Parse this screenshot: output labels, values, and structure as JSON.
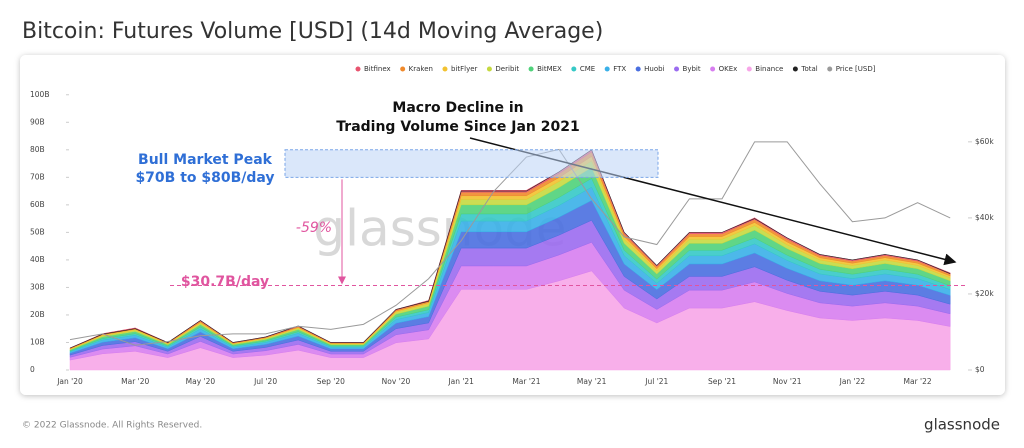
{
  "chart_data": {
    "type": "stacked-area",
    "title": "Bitcoin: Futures Volume [USD] (14d Moving Average)",
    "categories": [
      "Jan '20",
      null,
      "Mar '20",
      null,
      "May '20",
      null,
      "Jul '20",
      null,
      "Sep '20",
      null,
      "Nov '20",
      null,
      "Jan '21",
      null,
      "Mar '21",
      null,
      "May '21",
      null,
      "Jul '21",
      null,
      "Sep '21",
      null,
      "Nov '21",
      null,
      "Jan '22",
      null,
      "Mar '22",
      null
    ],
    "ylim": [
      0,
      105
    ],
    "yticks": [
      {
        "value": 0,
        "label": "0"
      },
      {
        "value": 10,
        "label": "10B"
      },
      {
        "value": 20,
        "label": "20B"
      },
      {
        "value": 30,
        "label": "30B"
      },
      {
        "value": 40,
        "label": "40B"
      },
      {
        "value": 50,
        "label": "50B"
      },
      {
        "value": 60,
        "label": "60B"
      },
      {
        "value": 70,
        "label": "70B"
      },
      {
        "value": 80,
        "label": "80B"
      },
      {
        "value": 90,
        "label": "90B"
      },
      {
        "value": 100,
        "label": "100B"
      }
    ],
    "y2lim": [
      0,
      76000
    ],
    "y2ticks": [
      {
        "value": 0,
        "label": "$0"
      },
      {
        "value": 20000,
        "label": "$20k"
      },
      {
        "value": 40000,
        "label": "$40k"
      },
      {
        "value": 60000,
        "label": "$60k"
      }
    ],
    "series": [
      {
        "name": "Bitfinex",
        "color": "#e8546f",
        "values": [
          0.1,
          0.1,
          0.2,
          0.1,
          0.2,
          0.1,
          0.1,
          0.2,
          0.1,
          0.1,
          0.2,
          0.3,
          0.7,
          0.7,
          0.7,
          0.7,
          0.8,
          0.5,
          0.4,
          0.5,
          0.5,
          0.6,
          0.5,
          0.4,
          0.4,
          0.4,
          0.4,
          0.4
        ]
      },
      {
        "name": "Kraken",
        "color": "#f08a2c",
        "values": [
          0.2,
          0.3,
          0.3,
          0.2,
          0.4,
          0.2,
          0.2,
          0.3,
          0.2,
          0.2,
          0.4,
          0.5,
          1.3,
          1.3,
          1.3,
          1.4,
          1.6,
          1.0,
          0.8,
          1.0,
          1.0,
          1.1,
          1.0,
          0.8,
          0.8,
          0.8,
          0.8,
          0.7
        ]
      },
      {
        "name": "bitFlyer",
        "color": "#f2c230",
        "values": [
          0.2,
          0.3,
          0.3,
          0.2,
          0.4,
          0.2,
          0.2,
          0.3,
          0.2,
          0.2,
          0.4,
          0.5,
          1.3,
          1.3,
          1.3,
          1.4,
          1.6,
          1.0,
          0.8,
          1.0,
          1.0,
          1.1,
          1.0,
          0.8,
          0.8,
          0.8,
          0.8,
          0.7
        ]
      },
      {
        "name": "Deribit",
        "color": "#c5d940",
        "values": [
          0.2,
          0.4,
          0.5,
          0.3,
          0.5,
          0.3,
          0.4,
          0.5,
          0.3,
          0.3,
          0.7,
          0.8,
          2.0,
          2.0,
          2.0,
          2.2,
          2.4,
          1.5,
          1.1,
          1.5,
          1.5,
          1.7,
          1.4,
          1.3,
          1.2,
          1.3,
          1.2,
          1.1
        ]
      },
      {
        "name": "BitMEX",
        "color": "#4fd27a",
        "values": [
          0.4,
          0.7,
          0.8,
          0.5,
          0.9,
          0.5,
          0.6,
          0.8,
          0.5,
          0.5,
          1.1,
          1.3,
          3.3,
          3.3,
          3.3,
          3.6,
          4.0,
          2.5,
          1.9,
          2.5,
          2.5,
          2.8,
          2.4,
          2.1,
          2.0,
          2.1,
          2.0,
          1.8
        ]
      },
      {
        "name": "CME",
        "color": "#36c9c6",
        "values": [
          0.3,
          0.5,
          0.6,
          0.4,
          0.7,
          0.4,
          0.5,
          0.6,
          0.4,
          0.4,
          0.9,
          1.0,
          2.6,
          2.6,
          2.6,
          2.9,
          3.2,
          2.0,
          1.5,
          2.0,
          2.0,
          2.2,
          1.9,
          1.7,
          1.6,
          1.7,
          1.6,
          1.4
        ]
      },
      {
        "name": "FTX",
        "color": "#3ab0e8",
        "values": [
          0.5,
          0.8,
          0.9,
          0.6,
          1.1,
          0.6,
          0.7,
          1.0,
          0.6,
          0.6,
          1.3,
          1.5,
          3.9,
          3.9,
          3.9,
          4.3,
          4.8,
          3.0,
          2.3,
          3.0,
          3.0,
          3.3,
          2.9,
          2.5,
          2.4,
          2.5,
          2.4,
          2.1
        ]
      },
      {
        "name": "Huobi",
        "color": "#4a6fe0",
        "values": [
          0.7,
          1.2,
          1.4,
          0.9,
          1.6,
          0.9,
          1.1,
          1.4,
          0.9,
          0.9,
          2.0,
          2.3,
          5.9,
          5.9,
          5.9,
          6.5,
          7.2,
          4.5,
          3.4,
          4.5,
          4.5,
          5.0,
          4.3,
          3.8,
          3.6,
          3.8,
          3.6,
          3.2
        ]
      },
      {
        "name": "Bybit",
        "color": "#9b6cf0",
        "values": [
          0.8,
          1.3,
          1.5,
          1.0,
          1.8,
          1.0,
          1.2,
          1.6,
          1.0,
          1.0,
          2.2,
          2.5,
          6.5,
          6.5,
          6.5,
          7.2,
          8.0,
          5.0,
          3.8,
          5.0,
          5.0,
          5.5,
          4.8,
          4.2,
          4.0,
          4.2,
          4.0,
          3.5
        ]
      },
      {
        "name": "OKEx",
        "color": "#d77ef0",
        "values": [
          1.0,
          1.7,
          2.0,
          1.3,
          2.3,
          1.3,
          1.6,
          2.1,
          1.3,
          1.3,
          2.9,
          3.3,
          8.5,
          8.5,
          8.5,
          9.4,
          10.4,
          6.5,
          4.9,
          6.5,
          6.5,
          7.2,
          6.2,
          5.5,
          5.2,
          5.5,
          5.2,
          4.6
        ]
      },
      {
        "name": "Binance",
        "color": "#f7a6e8",
        "values": [
          3.6,
          5.9,
          6.8,
          4.5,
          8.1,
          4.5,
          5.4,
          7.2,
          4.5,
          4.5,
          9.9,
          11.3,
          29.3,
          29.3,
          29.3,
          32.4,
          36,
          22.5,
          17.1,
          22.5,
          22.5,
          24.8,
          21.6,
          18.9,
          18,
          18.9,
          18,
          15.8
        ]
      },
      {
        "name": "Total",
        "color": "#222222",
        "style": "line",
        "values": [
          8,
          13,
          15,
          10,
          18,
          10,
          12,
          16,
          10,
          10,
          22,
          25,
          65,
          65,
          65,
          72,
          80,
          50,
          38,
          50,
          50,
          55,
          48,
          42,
          40,
          42,
          40,
          35
        ]
      },
      {
        "name": "Price [USD]",
        "color": "#9a9a9a",
        "style": "line",
        "axis": "y2",
        "values": [
          8000,
          9500,
          6500,
          7500,
          9000,
          9500,
          9500,
          11500,
          10700,
          12000,
          17000,
          24000,
          34000,
          47000,
          56000,
          58000,
          45000,
          35000,
          33000,
          45000,
          45000,
          60000,
          60000,
          49000,
          39000,
          40000,
          44000,
          40000
        ]
      }
    ],
    "annotations": {
      "trend": [
        "Macro Decline in",
        "Trading Volume Since Jan 2021"
      ],
      "peak": [
        "Bull Market Peak",
        "$70B to $80B/day"
      ],
      "peak_band": [
        70,
        80
      ],
      "change": "-59%",
      "level": 30.7,
      "level_label": "$30.7B/day"
    },
    "watermark": "glassnode",
    "footer": "© 2022 Glassnode. All Rights Reserved.",
    "logo": "glassnode"
  }
}
